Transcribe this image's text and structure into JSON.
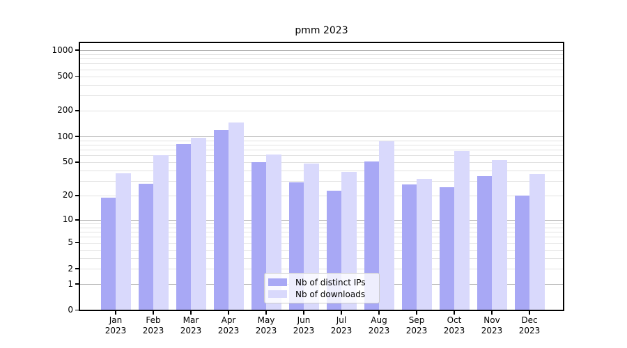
{
  "figure": {
    "background": "#ffffff"
  },
  "chart_data": {
    "type": "bar",
    "title": "pmm 2023",
    "categories": [
      "Jan 2023",
      "Feb 2023",
      "Mar 2023",
      "Apr 2023",
      "May 2023",
      "Jun 2023",
      "Jul 2023",
      "Aug 2023",
      "Sep 2023",
      "Oct 2023",
      "Nov 2023",
      "Dec 2023"
    ],
    "series": [
      {
        "name": "Nb of distinct IPs",
        "color": "#a8a8f5",
        "values": [
          19,
          28,
          82,
          118,
          50,
          29,
          23,
          51,
          27,
          25,
          34,
          20
        ]
      },
      {
        "name": "Nb of downloads",
        "color": "#d9d9fc",
        "values": [
          37,
          60,
          96,
          145,
          61,
          48,
          38,
          88,
          32,
          67,
          53,
          36
        ]
      }
    ],
    "yscale": "log1p",
    "ylim": [
      0,
      1250
    ],
    "y_axis": {
      "tick_values": [
        0,
        1,
        2,
        5,
        10,
        20,
        50,
        100,
        200,
        500,
        1000
      ],
      "tick_labels": [
        "0",
        "1",
        "2",
        "5",
        "10",
        "20",
        "50",
        "100",
        "200",
        "500",
        "1000"
      ],
      "major_gridlines": [
        1,
        10,
        100,
        1000
      ],
      "minor_gridlines": [
        2,
        3,
        4,
        5,
        6,
        7,
        8,
        9,
        20,
        30,
        40,
        50,
        60,
        70,
        80,
        90,
        200,
        300,
        400,
        500,
        600,
        700,
        800,
        900
      ]
    },
    "grid": {
      "major_color": "rgba(110,110,110,0.55)",
      "minor_color": "rgba(170,170,170,0.35)",
      "drawn_over_bars": true
    },
    "legend_position": "lower center"
  }
}
